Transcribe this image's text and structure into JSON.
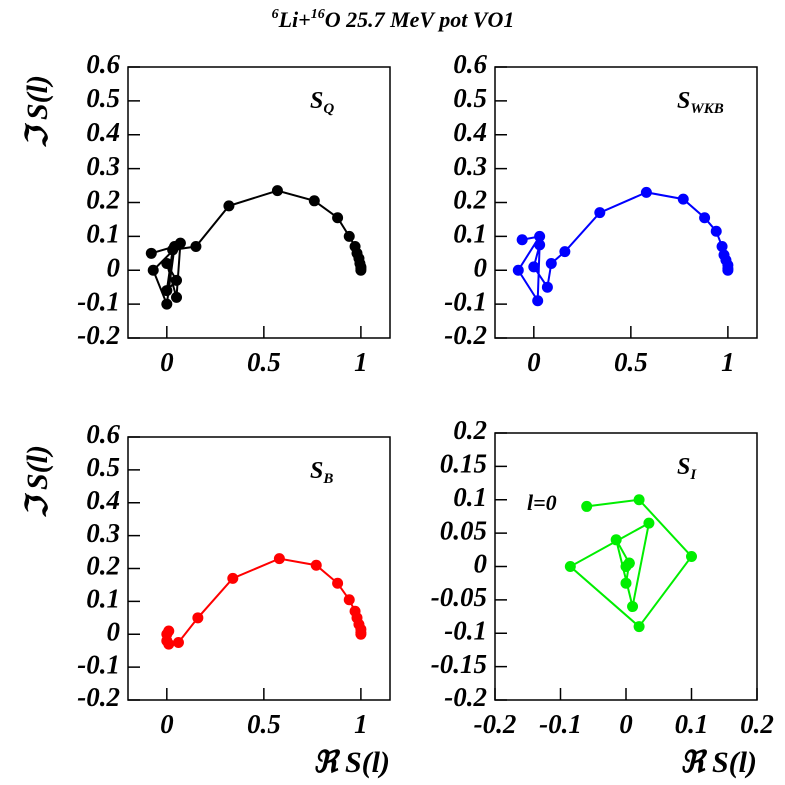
{
  "title": [
    "6",
    "Li+",
    "16",
    "O 25.7 MeV pot VO1"
  ],
  "chart_data": [
    {
      "type": "line",
      "label": [
        "S",
        "Q"
      ],
      "ylabel": "ℑ S(l)",
      "x": [
        -0.08,
        0.04,
        0,
        -0.07,
        0.07,
        0.05,
        0,
        0.05,
        0,
        0.03,
        0.15,
        0.32,
        0.57,
        0.76,
        0.88,
        0.94,
        0.97,
        0.98,
        0.99,
        0.995,
        1.0,
        1.0,
        1.0
      ],
      "series": [
        {
          "color": "#000000",
          "values": [
            0.05,
            0.07,
            -0.1,
            0,
            0.08,
            -0.08,
            0.02,
            -0.03,
            -0.06,
            0.06,
            0.07,
            0.19,
            0.235,
            0.205,
            0.155,
            0.1,
            0.07,
            0.05,
            0.035,
            0.02,
            0.01,
            0.005,
            0
          ]
        }
      ],
      "xlim": [
        -0.2,
        1.15
      ],
      "xticks": [
        0,
        0.5,
        1
      ],
      "ylim": [
        -0.2,
        0.6
      ],
      "yticks": [
        -0.2,
        -0.1,
        0,
        0.1,
        0.2,
        0.3,
        0.4,
        0.5,
        0.6
      ]
    },
    {
      "type": "line",
      "label": [
        "S",
        "WKB"
      ],
      "x": [
        -0.06,
        0.03,
        -0.08,
        0.02,
        0.03,
        0,
        0.07,
        0.09,
        0.16,
        0.34,
        0.58,
        0.77,
        0.88,
        0.94,
        0.97,
        0.98,
        0.99,
        1.0,
        1.0,
        1.0
      ],
      "series": [
        {
          "color": "#0000ff",
          "values": [
            0.09,
            0.1,
            0,
            -0.09,
            0.075,
            0.01,
            -0.05,
            0.02,
            0.055,
            0.17,
            0.23,
            0.21,
            0.155,
            0.115,
            0.07,
            0.045,
            0.03,
            0.015,
            0.005,
            0
          ]
        }
      ],
      "xlim": [
        -0.2,
        1.15
      ],
      "xticks": [
        0,
        0.5,
        1
      ],
      "ylim": [
        -0.2,
        0.6
      ],
      "yticks": [
        -0.2,
        -0.1,
        0,
        0.1,
        0.2,
        0.3,
        0.4,
        0.5,
        0.6
      ]
    },
    {
      "type": "line",
      "label": [
        "S",
        "B"
      ],
      "ylabel": "ℑ S(l)",
      "xlabel": "ℜ S(l)",
      "x": [
        0,
        0.01,
        0,
        0.01,
        0.06,
        0.16,
        0.34,
        0.58,
        0.77,
        0.88,
        0.94,
        0.97,
        0.98,
        0.99,
        1.0,
        1.0,
        1.0
      ],
      "series": [
        {
          "color": "#ff0000",
          "values": [
            0,
            0.01,
            -0.02,
            -0.03,
            -0.025,
            0.05,
            0.17,
            0.23,
            0.21,
            0.155,
            0.105,
            0.07,
            0.05,
            0.03,
            0.015,
            0.005,
            0
          ]
        }
      ],
      "xlim": [
        -0.2,
        1.15
      ],
      "xticks": [
        0,
        0.5,
        1
      ],
      "ylim": [
        -0.2,
        0.6
      ],
      "yticks": [
        -0.2,
        -0.1,
        0,
        0.1,
        0.2,
        0.3,
        0.4,
        0.5,
        0.6
      ]
    },
    {
      "type": "line",
      "label": [
        "S",
        "I"
      ],
      "xlabel": "ℜ S(l)",
      "annotation": "l=0",
      "x": [
        -0.06,
        0.02,
        0.1,
        0.02,
        -0.085,
        0.035,
        0.01,
        -0.015,
        0.005,
        0,
        0.005,
        0
      ],
      "series": [
        {
          "color": "#00ee00",
          "values": [
            0.09,
            0.1,
            0.015,
            -0.09,
            0,
            0.065,
            -0.06,
            0.04,
            0.005,
            -0.025,
            0.005,
            0
          ]
        }
      ],
      "xlim": [
        -0.2,
        0.2
      ],
      "xticks": [
        -0.2,
        -0.1,
        0,
        0.1,
        0.2
      ],
      "ylim": [
        -0.2,
        0.2
      ],
      "yticks": [
        -0.2,
        -0.15,
        -0.1,
        -0.05,
        0,
        0.05,
        0.1,
        0.15,
        0.2
      ]
    }
  ]
}
